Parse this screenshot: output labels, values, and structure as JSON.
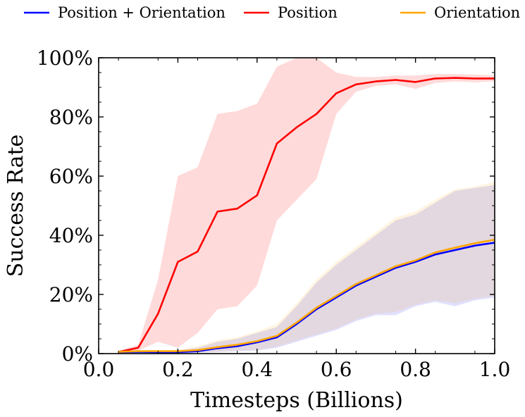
{
  "chart_data": {
    "type": "line",
    "xlabel": "Timesteps (Billions)",
    "ylabel": "Success Rate",
    "xlim": [
      0.0,
      1.0
    ],
    "ylim": [
      0,
      100
    ],
    "xticks": [
      0.0,
      0.2,
      0.4,
      0.6,
      0.8,
      1.0
    ],
    "xtick_labels": [
      "0.0",
      "0.2",
      "0.4",
      "0.6",
      "0.8",
      "1.0"
    ],
    "yticks": [
      0,
      20,
      40,
      60,
      80,
      100
    ],
    "ytick_labels": [
      "0%",
      "20%",
      "40%",
      "60%",
      "80%",
      "100%"
    ],
    "grid": false,
    "legend_position": "top, outside plot",
    "series": [
      {
        "name": "Position + Orientation",
        "color": "#0000ff",
        "x": [
          0.05,
          0.1,
          0.15,
          0.2,
          0.25,
          0.3,
          0.35,
          0.4,
          0.45,
          0.5,
          0.55,
          0.6,
          0.65,
          0.7,
          0.75,
          0.8,
          0.85,
          0.9,
          0.95,
          1.0
        ],
        "y": [
          0.5,
          0.6,
          0.5,
          0.5,
          0.8,
          1.8,
          2.5,
          3.8,
          5.5,
          10,
          15,
          19,
          23,
          26,
          29,
          31,
          33.5,
          35,
          36.5,
          37.5
        ],
        "y_upper": [
          0.7,
          0.9,
          0.8,
          1,
          2,
          4,
          5,
          7,
          9,
          16,
          24,
          30,
          35,
          40,
          45,
          47,
          51,
          55,
          56,
          57
        ],
        "y_lower": [
          0.3,
          0.3,
          0.3,
          0.2,
          0.3,
          0.5,
          0.8,
          1,
          2,
          4,
          6,
          8,
          11,
          13,
          13,
          16,
          17.5,
          16,
          18,
          19
        ]
      },
      {
        "name": "Position",
        "color": "#ff0000",
        "band_color": "#ffdada",
        "x": [
          0.05,
          0.1,
          0.15,
          0.2,
          0.25,
          0.3,
          0.35,
          0.4,
          0.45,
          0.5,
          0.55,
          0.6,
          0.65,
          0.7,
          0.75,
          0.8,
          0.85,
          0.9,
          0.95,
          1.0
        ],
        "y": [
          0.5,
          2,
          13.5,
          31,
          34.5,
          48,
          49,
          53.5,
          71,
          76.5,
          81,
          88,
          91,
          92,
          92.5,
          91.8,
          93,
          93.2,
          93,
          93
        ],
        "y_upper": [
          1,
          3,
          25,
          60,
          63,
          81,
          82,
          84.5,
          97,
          100,
          100,
          95,
          93.5,
          93.5,
          94,
          94,
          94.5,
          94.5,
          94.3,
          94
        ],
        "y_lower": [
          0,
          1,
          4,
          2,
          7,
          15,
          16,
          23,
          45,
          52,
          59,
          81,
          88.5,
          90.5,
          91,
          89.5,
          91.5,
          92,
          91.7,
          92
        ]
      },
      {
        "name": "Orientation",
        "color": "#ffa500",
        "x": [
          0.05,
          0.1,
          0.15,
          0.2,
          0.25,
          0.3,
          0.35,
          0.4,
          0.45,
          0.5,
          0.55,
          0.6,
          0.65,
          0.7,
          0.75,
          0.8,
          0.85,
          0.9,
          0.95,
          1.0
        ],
        "y": [
          0.6,
          0.8,
          0.8,
          0.8,
          1.2,
          2.2,
          3,
          4.2,
          6,
          10.5,
          15.5,
          19.5,
          23.5,
          26.5,
          29.5,
          31.5,
          34.2,
          35.8,
          37.3,
          38.5
        ],
        "y_upper": [
          0.8,
          1,
          1,
          1.2,
          2.5,
          4.5,
          5.5,
          7.5,
          10,
          17,
          25,
          31,
          36,
          41,
          46,
          48,
          52,
          55.5,
          56.5,
          58
        ],
        "y_lower": [
          0.4,
          0.5,
          0.5,
          0.4,
          0.4,
          0.6,
          1,
          1.2,
          2.3,
          4.5,
          6.5,
          8.5,
          11.5,
          13.5,
          14,
          16.5,
          18,
          17,
          18.5,
          19.5
        ]
      }
    ],
    "overlap_band_color": "#d3c8d0"
  }
}
